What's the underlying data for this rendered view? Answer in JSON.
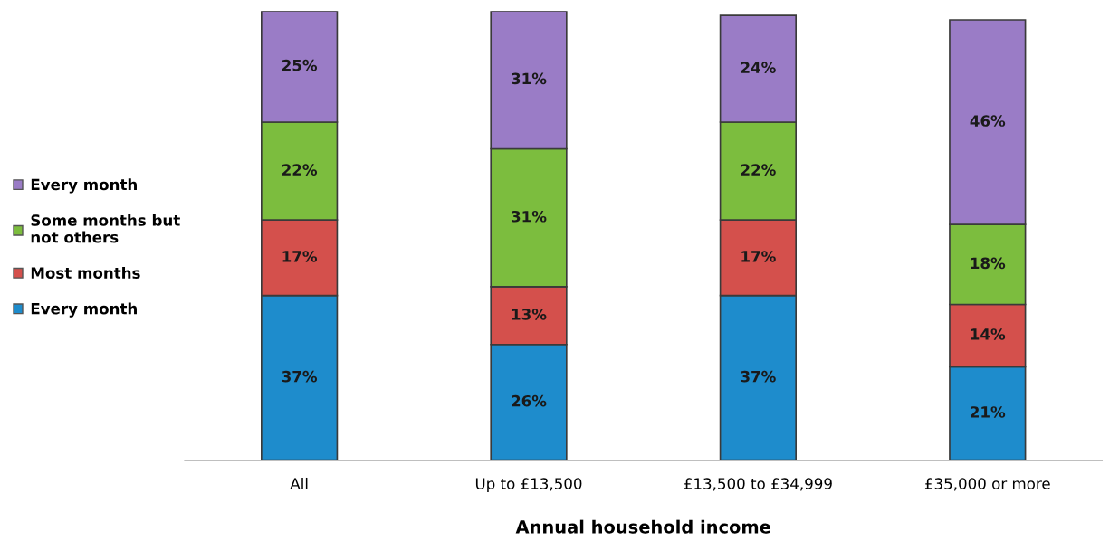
{
  "chart_data": {
    "type": "bar",
    "stacked": true,
    "xlabel": "Annual household income",
    "categories": [
      "All",
      "Up to £13,500",
      "£13,500 to £34,999",
      "£35,000 or more"
    ],
    "series": [
      {
        "name": "Every month",
        "color": "#1e8ccc",
        "values": [
          37,
          26,
          37,
          21
        ],
        "value_labels": [
          "37%",
          "26%",
          "37%",
          "21%"
        ]
      },
      {
        "name": "Most months",
        "color": "#d4504c",
        "values": [
          17,
          13,
          17,
          14
        ],
        "value_labels": [
          "17%",
          "13%",
          "17%",
          "14%"
        ]
      },
      {
        "name": "Some months but not others",
        "color": "#7cbd3e",
        "values": [
          22,
          31,
          22,
          18
        ],
        "value_labels": [
          "22%",
          "31%",
          "22%",
          "18%"
        ]
      },
      {
        "name": "Every month",
        "color": "#9a7cc6",
        "values": [
          25,
          31,
          24,
          46
        ],
        "value_labels": [
          "25%",
          "31%",
          "24%",
          "46%"
        ]
      }
    ],
    "legend": "left",
    "grid": false
  }
}
